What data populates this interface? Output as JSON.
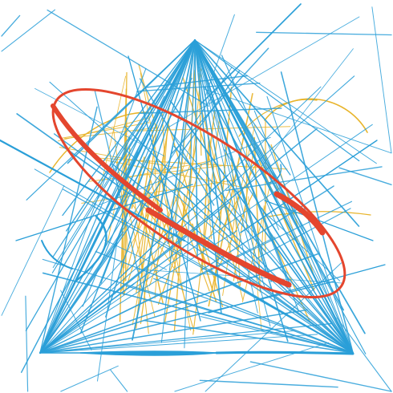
{
  "artwork": {
    "colors": {
      "background": "#ffffff",
      "blue": "#2a9fd8",
      "yellow": "#e8b42a",
      "red": "#e4462e"
    }
  }
}
